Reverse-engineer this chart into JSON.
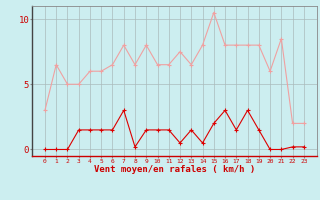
{
  "x": [
    0,
    1,
    2,
    3,
    4,
    5,
    6,
    7,
    8,
    9,
    10,
    11,
    12,
    13,
    14,
    15,
    16,
    17,
    18,
    19,
    20,
    21,
    22,
    23
  ],
  "rafales": [
    3.0,
    6.5,
    5.0,
    5.0,
    6.0,
    6.0,
    6.5,
    8.0,
    6.5,
    8.0,
    6.5,
    6.5,
    7.5,
    6.5,
    8.0,
    10.5,
    8.0,
    8.0,
    8.0,
    8.0,
    6.0,
    8.5,
    2.0,
    2.0
  ],
  "moyen": [
    0.0,
    0.0,
    0.0,
    1.5,
    1.5,
    1.5,
    1.5,
    3.0,
    0.2,
    1.5,
    1.5,
    1.5,
    0.5,
    1.5,
    0.5,
    2.0,
    3.0,
    1.5,
    3.0,
    1.5,
    0.0,
    0.0,
    0.2,
    0.2
  ],
  "bg_color": "#cceef0",
  "grid_color": "#aabbbb",
  "line_rafales_color": "#f0a0a0",
  "line_moyen_color": "#dd0000",
  "xlabel": "Vent moyen/en rafales ( km/h )",
  "ylim": [
    -0.5,
    11.0
  ],
  "yticks": [
    0,
    5,
    10
  ],
  "xticks": [
    0,
    1,
    2,
    3,
    4,
    5,
    6,
    7,
    8,
    9,
    10,
    11,
    12,
    13,
    14,
    15,
    16,
    17,
    18,
    19,
    20,
    21,
    22,
    23
  ]
}
